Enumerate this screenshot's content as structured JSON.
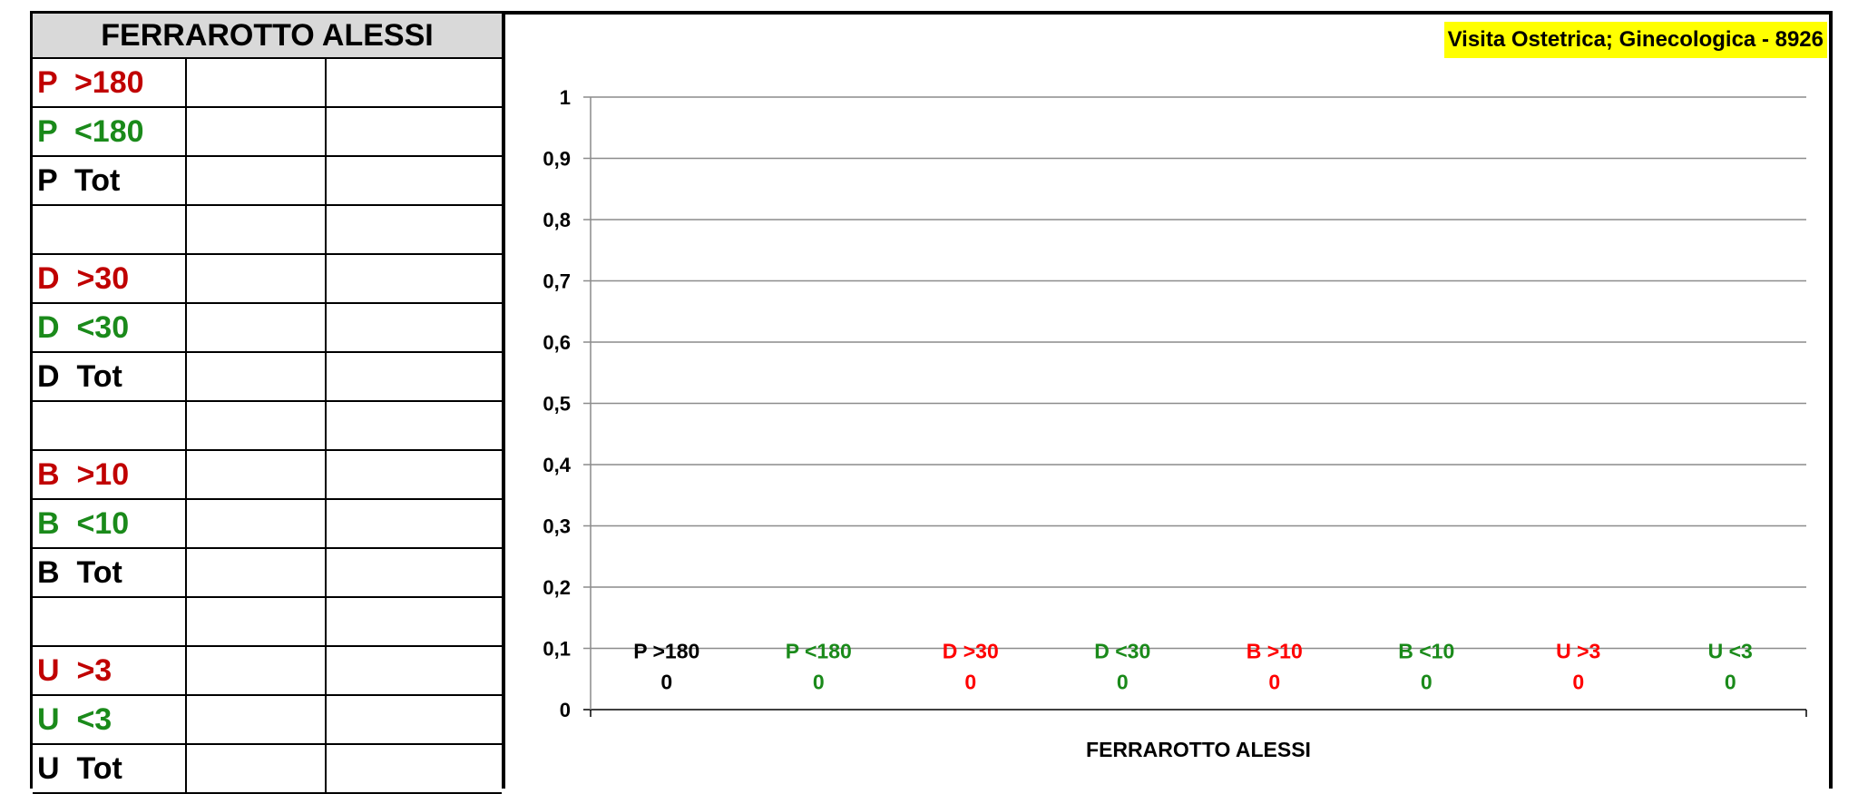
{
  "table": {
    "title": "FERRAROTTO ALESSI",
    "rows": [
      {
        "label": "P  >180",
        "color": "#c00000"
      },
      {
        "label": "P  <180",
        "color": "#1a8a1a"
      },
      {
        "label": "P  Tot",
        "color": "#000000"
      },
      {
        "label": "",
        "color": "#000000"
      },
      {
        "label": "D  >30",
        "color": "#c00000"
      },
      {
        "label": "D  <30",
        "color": "#1a8a1a"
      },
      {
        "label": "D  Tot",
        "color": "#000000"
      },
      {
        "label": "",
        "color": "#000000"
      },
      {
        "label": "B  >10",
        "color": "#c00000"
      },
      {
        "label": "B  <10",
        "color": "#1a8a1a"
      },
      {
        "label": "B  Tot",
        "color": "#000000"
      },
      {
        "label": "",
        "color": "#000000"
      },
      {
        "label": "U  >3",
        "color": "#c00000"
      },
      {
        "label": "U  <3",
        "color": "#1a8a1a"
      },
      {
        "label": "U  Tot",
        "color": "#000000"
      }
    ]
  },
  "chart_data": {
    "type": "bar",
    "title": "Visita Ostetrica; Ginecologica - 8926",
    "xlabel": "FERRAROTTO ALESSI",
    "ylabel": "",
    "ylim": [
      0,
      1
    ],
    "yticks": [
      "0",
      "0,1",
      "0,2",
      "0,3",
      "0,4",
      "0,5",
      "0,6",
      "0,7",
      "0,8",
      "0,9",
      "1"
    ],
    "grid": true,
    "categories": [
      "P  >180",
      "P  <180",
      "D  >30",
      "D  <30",
      "B  >10",
      "B  <10",
      "U  >3",
      "U  <3"
    ],
    "values": [
      0,
      0,
      0,
      0,
      0,
      0,
      0,
      0
    ],
    "data_labels": [
      "0",
      "0",
      "0",
      "0",
      "0",
      "0",
      "0",
      "0"
    ],
    "category_colors": [
      "#000000",
      "#1a8a1a",
      "#ff0000",
      "#1a8a1a",
      "#ff0000",
      "#1a8a1a",
      "#ff0000",
      "#1a8a1a"
    ],
    "value_colors": [
      "#000000",
      "#1a8a1a",
      "#ff0000",
      "#1a8a1a",
      "#ff0000",
      "#1a8a1a",
      "#ff0000",
      "#1a8a1a"
    ],
    "title_background": "#ffff00"
  }
}
